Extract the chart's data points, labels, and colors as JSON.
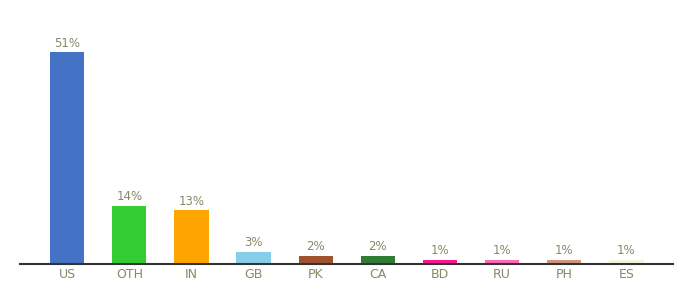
{
  "categories": [
    "US",
    "OTH",
    "IN",
    "GB",
    "PK",
    "CA",
    "BD",
    "RU",
    "PH",
    "ES"
  ],
  "values": [
    51,
    14,
    13,
    3,
    2,
    2,
    1,
    1,
    1,
    1
  ],
  "labels": [
    "51%",
    "14%",
    "13%",
    "3%",
    "2%",
    "2%",
    "1%",
    "1%",
    "1%",
    "1%"
  ],
  "bar_colors": [
    "#4472C4",
    "#33CC33",
    "#FFA500",
    "#87CEEB",
    "#A0522D",
    "#2E7D32",
    "#FF1493",
    "#FF69B4",
    "#D2957A",
    "#F5F5DC"
  ],
  "ylim": [
    0,
    60
  ],
  "label_color": "#888866",
  "tick_color": "#888866",
  "background_color": "#ffffff",
  "bottom_line_color": "#333333",
  "label_fontsize": 8.5,
  "tick_fontsize": 9.0,
  "bar_width": 0.55
}
